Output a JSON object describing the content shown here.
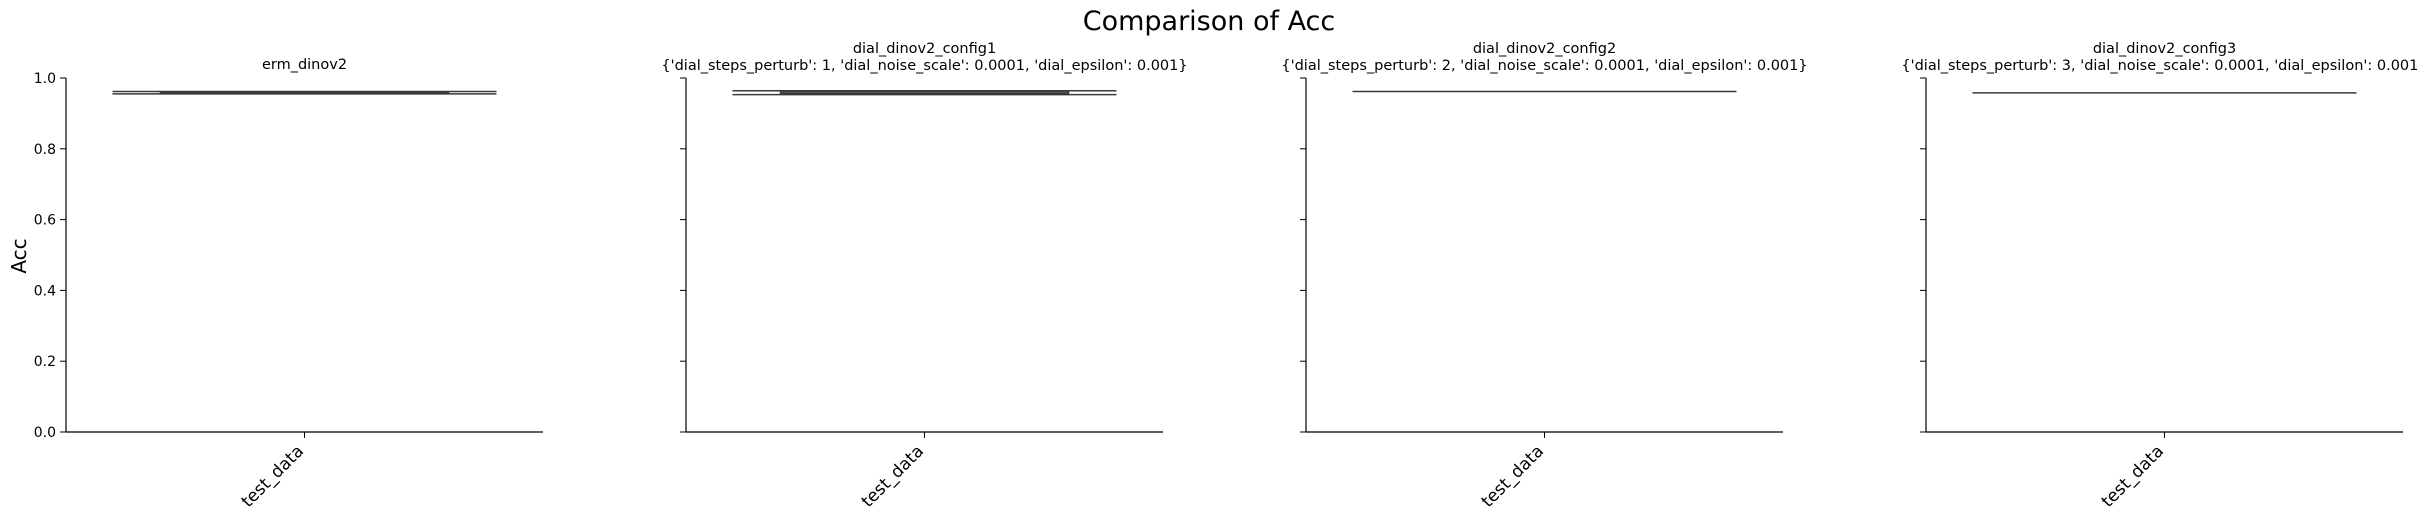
{
  "figure": {
    "title": "Comparison of Acc",
    "ylabel": "Acc"
  },
  "chart_data": [
    {
      "type": "box",
      "title_lines": [
        "erm_dinov2"
      ],
      "categories": [
        "test_data"
      ],
      "ylim": [
        0.0,
        1.0
      ],
      "yticks": [
        "0.0",
        "0.2",
        "0.4",
        "0.6",
        "0.8",
        "1.0"
      ],
      "boxes": [
        {
          "min": 0.955,
          "q1": 0.956,
          "median": 0.957,
          "q3": 0.961,
          "max": 0.962
        }
      ]
    },
    {
      "type": "box",
      "title_lines": [
        "dial_dinov2_config1",
        "{'dial_steps_perturb': 1, 'dial_noise_scale': 0.0001, 'dial_epsilon': 0.001}"
      ],
      "categories": [
        "test_data"
      ],
      "ylim": [
        0.0,
        1.0
      ],
      "yticks": [
        "0.0",
        "0.2",
        "0.4",
        "0.6",
        "0.8",
        "1.0"
      ],
      "boxes": [
        {
          "min": 0.953,
          "q1": 0.954,
          "median": 0.957,
          "q3": 0.963,
          "max": 0.964
        }
      ]
    },
    {
      "type": "box",
      "title_lines": [
        "dial_dinov2_config2",
        "{'dial_steps_perturb': 2, 'dial_noise_scale': 0.0001, 'dial_epsilon': 0.001}"
      ],
      "categories": [
        "test_data"
      ],
      "ylim": [
        0.0,
        1.0
      ],
      "yticks": [
        "0.0",
        "0.2",
        "0.4",
        "0.6",
        "0.8",
        "1.0"
      ],
      "boxes": [
        {
          "min": 0.962,
          "q1": 0.962,
          "median": 0.962,
          "q3": 0.962,
          "max": 0.962
        }
      ]
    },
    {
      "type": "box",
      "title_lines": [
        "dial_dinov2_config3",
        "{'dial_steps_perturb': 3, 'dial_noise_scale': 0.0001, 'dial_epsilon': 0.001}"
      ],
      "categories": [
        "test_data"
      ],
      "ylim": [
        0.0,
        1.0
      ],
      "yticks": [
        "0.0",
        "0.2",
        "0.4",
        "0.6",
        "0.8",
        "1.0"
      ],
      "boxes": [
        {
          "min": 0.958,
          "q1": 0.958,
          "median": 0.958,
          "q3": 0.958,
          "max": 0.958
        }
      ]
    }
  ]
}
